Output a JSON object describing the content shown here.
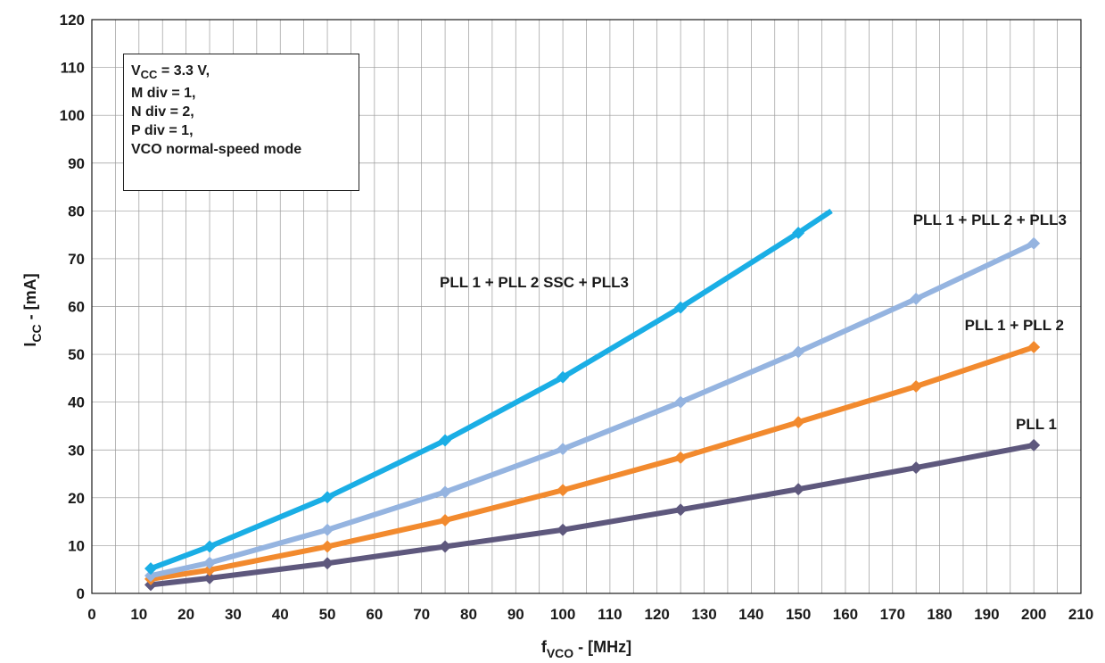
{
  "chart_data": {
    "type": "line",
    "xlabel": {
      "main": "f",
      "sub": "VCO",
      "rest": " - [MHz]"
    },
    "ylabel": {
      "main": "I",
      "sub": "CC",
      "rest": " - [mA]"
    },
    "xlim": [
      0,
      210
    ],
    "ylim": [
      0,
      120
    ],
    "xticks": [
      0,
      10,
      20,
      30,
      40,
      50,
      60,
      70,
      80,
      90,
      100,
      110,
      120,
      130,
      140,
      150,
      160,
      170,
      180,
      190,
      200,
      210
    ],
    "yticks": [
      0,
      10,
      20,
      30,
      40,
      50,
      60,
      70,
      80,
      90,
      100,
      110,
      120
    ],
    "grid": true,
    "series": [
      {
        "name": "PLL 1",
        "color": "#5e587d",
        "marker": "diamond",
        "x": [
          12.5,
          25,
          50,
          75,
          100,
          125,
          150,
          175,
          200
        ],
        "y": [
          1.8,
          3.2,
          6.3,
          9.8,
          13.3,
          17.5,
          21.8,
          26.3,
          31
        ]
      },
      {
        "name": "PLL 1 + PLL 2",
        "color": "#f28a2e",
        "marker": "diamond",
        "x": [
          12.5,
          25,
          50,
          75,
          100,
          125,
          150,
          175,
          200
        ],
        "y": [
          3,
          4.9,
          9.8,
          15.3,
          21.6,
          28.4,
          35.8,
          43.3,
          51.5
        ]
      },
      {
        "name": "PLL 1 + PLL 2 + PLL3",
        "color": "#95b4e0",
        "marker": "diamond",
        "x": [
          12.5,
          25,
          50,
          75,
          100,
          125,
          150,
          175,
          200
        ],
        "y": [
          3.7,
          6.4,
          13.3,
          21.2,
          30.2,
          40,
          50.5,
          61.6,
          73.2
        ]
      },
      {
        "name": "PLL 1 + PLL 2 SSC + PLL3",
        "color": "#1aaee5",
        "marker": "diamond",
        "x": [
          12.5,
          25,
          50,
          75,
          100,
          125,
          150,
          157
        ],
        "y": [
          5.2,
          9.8,
          20.1,
          32,
          45.2,
          59.8,
          75.4,
          80
        ],
        "marked_points": 7
      }
    ],
    "annotation": {
      "lines": [
        {
          "main": "V",
          "sub": "CC",
          "rest": " = 3.3 V,"
        },
        {
          "main": "M div = 1,",
          "sub": "",
          "rest": ""
        },
        {
          "main": "N div = 2,",
          "sub": "",
          "rest": ""
        },
        {
          "main": "P div = 1,",
          "sub": "",
          "rest": ""
        },
        {
          "main": "VCO normal-speed mode",
          "sub": "",
          "rest": ""
        }
      ]
    }
  }
}
